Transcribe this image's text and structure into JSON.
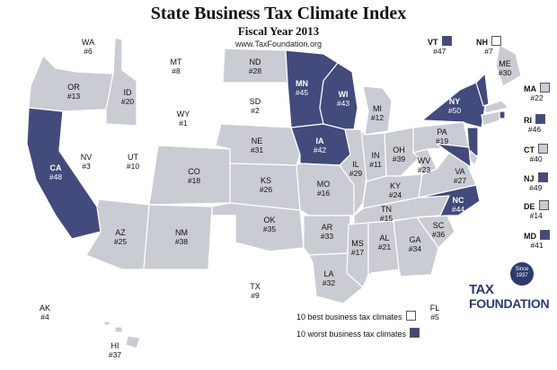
{
  "header": {
    "title": "State Business Tax Climate Index",
    "subtitle": "Fiscal Year 2013",
    "url": "www.TaxFoundation.org"
  },
  "colors": {
    "best": "#ffffff",
    "middle": "#c9ccd2",
    "worst": "#434a7c",
    "border": "#ffffff"
  },
  "legend": {
    "best_label": "10 best business tax climates",
    "worst_label": "10 worst business tax climates"
  },
  "logo": {
    "line1": "TAX",
    "line2": "FOUNDATION",
    "seal_top": "Since",
    "seal_bottom": "1937"
  },
  "states": {
    "WA": {
      "abbr": "WA",
      "rank": "#6",
      "tier": "best"
    },
    "OR": {
      "abbr": "OR",
      "rank": "#13",
      "tier": "middle"
    },
    "CA": {
      "abbr": "CA",
      "rank": "#48",
      "tier": "worst"
    },
    "NV": {
      "abbr": "NV",
      "rank": "#3",
      "tier": "best"
    },
    "ID": {
      "abbr": "ID",
      "rank": "#20",
      "tier": "middle"
    },
    "MT": {
      "abbr": "MT",
      "rank": "#8",
      "tier": "best"
    },
    "WY": {
      "abbr": "WY",
      "rank": "#1",
      "tier": "best"
    },
    "UT": {
      "abbr": "UT",
      "rank": "#10",
      "tier": "best"
    },
    "AZ": {
      "abbr": "AZ",
      "rank": "#25",
      "tier": "middle"
    },
    "CO": {
      "abbr": "CO",
      "rank": "#18",
      "tier": "middle"
    },
    "NM": {
      "abbr": "NM",
      "rank": "#38",
      "tier": "middle"
    },
    "ND": {
      "abbr": "ND",
      "rank": "#28",
      "tier": "middle"
    },
    "SD": {
      "abbr": "SD",
      "rank": "#2",
      "tier": "best"
    },
    "NE": {
      "abbr": "NE",
      "rank": "#31",
      "tier": "middle"
    },
    "KS": {
      "abbr": "KS",
      "rank": "#26",
      "tier": "middle"
    },
    "OK": {
      "abbr": "OK",
      "rank": "#35",
      "tier": "middle"
    },
    "TX": {
      "abbr": "TX",
      "rank": "#9",
      "tier": "best"
    },
    "MN": {
      "abbr": "MN",
      "rank": "#45",
      "tier": "worst"
    },
    "IA": {
      "abbr": "IA",
      "rank": "#42",
      "tier": "worst"
    },
    "MO": {
      "abbr": "MO",
      "rank": "#16",
      "tier": "middle"
    },
    "AR": {
      "abbr": "AR",
      "rank": "#33",
      "tier": "middle"
    },
    "LA": {
      "abbr": "LA",
      "rank": "#32",
      "tier": "middle"
    },
    "WI": {
      "abbr": "WI",
      "rank": "#43",
      "tier": "worst"
    },
    "IL": {
      "abbr": "IL",
      "rank": "#29",
      "tier": "middle"
    },
    "MI": {
      "abbr": "MI",
      "rank": "#12",
      "tier": "middle"
    },
    "IN": {
      "abbr": "IN",
      "rank": "#11",
      "tier": "middle"
    },
    "OH": {
      "abbr": "OH",
      "rank": "#39",
      "tier": "middle"
    },
    "KY": {
      "abbr": "KY",
      "rank": "#24",
      "tier": "middle"
    },
    "TN": {
      "abbr": "TN",
      "rank": "#15",
      "tier": "middle"
    },
    "MS": {
      "abbr": "MS",
      "rank": "#17",
      "tier": "middle"
    },
    "AL": {
      "abbr": "AL",
      "rank": "#21",
      "tier": "middle"
    },
    "GA": {
      "abbr": "GA",
      "rank": "#34",
      "tier": "middle"
    },
    "FL": {
      "abbr": "FL",
      "rank": "#5",
      "tier": "best"
    },
    "SC": {
      "abbr": "SC",
      "rank": "#36",
      "tier": "middle"
    },
    "NC": {
      "abbr": "NC",
      "rank": "#44",
      "tier": "worst"
    },
    "VA": {
      "abbr": "VA",
      "rank": "#27",
      "tier": "middle"
    },
    "WV": {
      "abbr": "WV",
      "rank": "#23",
      "tier": "middle"
    },
    "PA": {
      "abbr": "PA",
      "rank": "#19",
      "tier": "middle"
    },
    "NY": {
      "abbr": "NY",
      "rank": "#50",
      "tier": "worst"
    },
    "ME": {
      "abbr": "ME",
      "rank": "#30",
      "tier": "middle"
    },
    "VT": {
      "abbr": "VT",
      "rank": "#47",
      "tier": "worst"
    },
    "NH": {
      "abbr": "NH",
      "rank": "#7",
      "tier": "best"
    },
    "MA": {
      "abbr": "MA",
      "rank": "#22",
      "tier": "middle"
    },
    "RI": {
      "abbr": "RI",
      "rank": "#46",
      "tier": "worst"
    },
    "CT": {
      "abbr": "CT",
      "rank": "#40",
      "tier": "middle"
    },
    "NJ": {
      "abbr": "NJ",
      "rank": "#49",
      "tier": "worst"
    },
    "DE": {
      "abbr": "DE",
      "rank": "#14",
      "tier": "middle"
    },
    "MD": {
      "abbr": "MD",
      "rank": "#41",
      "tier": "worst"
    },
    "AK": {
      "abbr": "AK",
      "rank": "#4",
      "tier": "best"
    },
    "HI": {
      "abbr": "HI",
      "rank": "#37",
      "tier": "middle"
    }
  }
}
